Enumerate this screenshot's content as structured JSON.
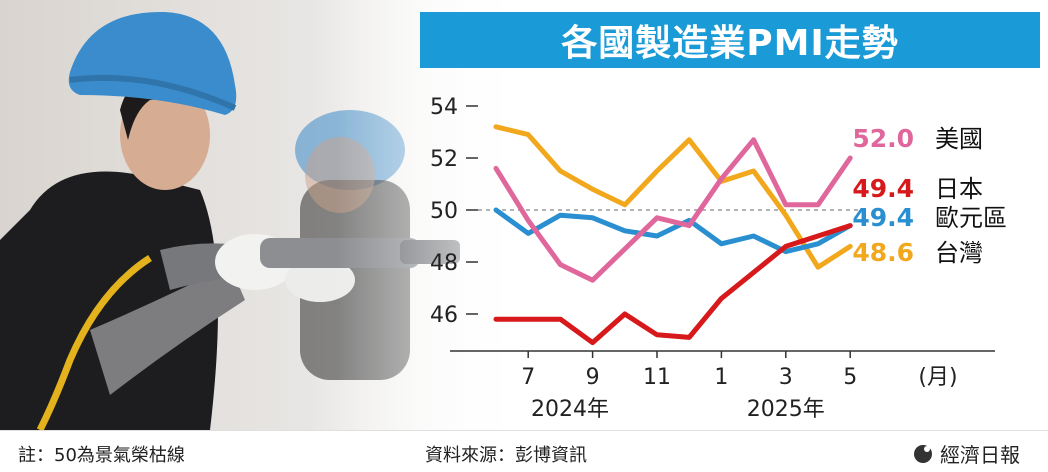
{
  "title": "各國製造業PMI走勢",
  "footer": {
    "note": "註：50為景氣榮枯線",
    "source": "資料來源：彭博資訊",
    "publisher": "經濟日報"
  },
  "colors": {
    "title_bg": "#1a9ad6",
    "us": "#e0679b",
    "japan": "#d7191c",
    "eurozone": "#2a8fd0",
    "taiwan": "#f2a81d"
  },
  "chart_data": {
    "type": "line",
    "title": "各國製造業PMI走勢",
    "x": [
      "2024-06",
      "2024-07",
      "2024-08",
      "2024-09",
      "2024-10",
      "2024-11",
      "2024-12",
      "2025-01",
      "2025-02",
      "2025-03",
      "2025-04",
      "2025-05"
    ],
    "x_tick_labels": [
      "7",
      "9",
      "11",
      "1",
      "3",
      "5"
    ],
    "x_unit_label": "(月)",
    "year_labels": [
      "2024年",
      "2025年"
    ],
    "y_tick_labels": [
      "54",
      "52",
      "50",
      "48",
      "46"
    ],
    "ylim": [
      45,
      55
    ],
    "reference_line": 50,
    "series": [
      {
        "name": "美國",
        "color": "#e0679b",
        "last_label": "52.0",
        "values": [
          51.6,
          49.6,
          47.9,
          47.3,
          48.5,
          49.7,
          49.4,
          51.2,
          52.7,
          50.2,
          50.2,
          52.0
        ]
      },
      {
        "name": "日本",
        "color": "#d7191c",
        "last_label": "49.4",
        "values": [
          45.8,
          45.8,
          45.8,
          44.9,
          46.0,
          45.2,
          45.1,
          46.6,
          47.6,
          48.6,
          49.0,
          49.4
        ]
      },
      {
        "name": "歐元區",
        "color": "#2a8fd0",
        "last_label": "49.4",
        "values": [
          50.0,
          49.1,
          49.8,
          49.7,
          49.2,
          49.0,
          49.6,
          48.7,
          49.0,
          48.4,
          48.7,
          49.4
        ]
      },
      {
        "name": "台灣",
        "color": "#f2a81d",
        "last_label": "48.6",
        "values": [
          53.2,
          52.9,
          51.5,
          50.8,
          50.2,
          51.5,
          52.7,
          51.1,
          51.5,
          49.8,
          47.8,
          48.6
        ]
      }
    ]
  }
}
